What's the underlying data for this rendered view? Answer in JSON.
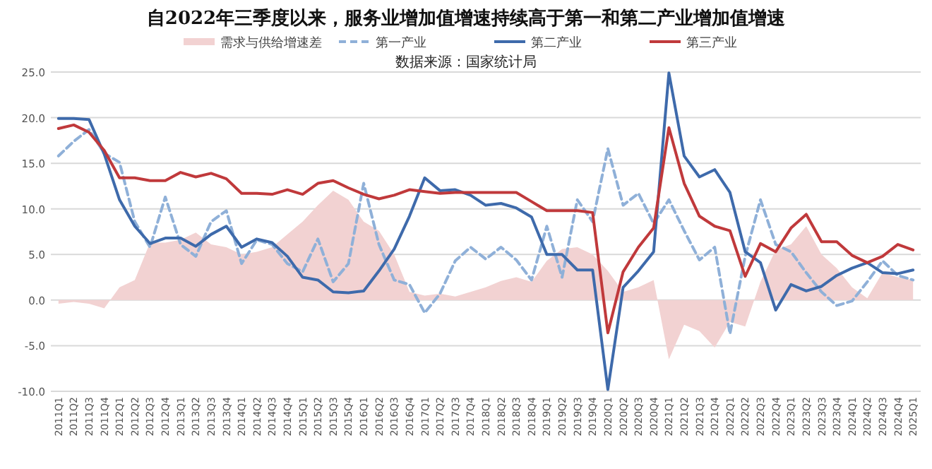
{
  "chart_data": {
    "type": "line",
    "title": "自2022年三季度以来，服务业增加值增速持续高于第一和第二产业增加值增速",
    "subtitle": "数据来源：国家统计局",
    "categories": [
      "2011Q1",
      "2011Q2",
      "2011Q3",
      "2011Q4",
      "2012Q1",
      "2012Q2",
      "2012Q3",
      "2012Q4",
      "2013Q1",
      "2013Q2",
      "2013Q3",
      "2013Q4",
      "2014Q1",
      "2014Q2",
      "2014Q3",
      "2014Q4",
      "2015Q1",
      "2015Q2",
      "2015Q3",
      "2015Q4",
      "2016Q1",
      "2016Q2",
      "2016Q3",
      "2016Q4",
      "2017Q1",
      "2017Q2",
      "2017Q3",
      "2017Q4",
      "2018Q1",
      "2018Q2",
      "2018Q3",
      "2018Q4",
      "2019Q1",
      "2019Q2",
      "2019Q3",
      "2019Q4",
      "2020Q1",
      "2020Q2",
      "2020Q3",
      "2020Q4",
      "2021Q1",
      "2021Q2",
      "2021Q3",
      "2021Q4",
      "2022Q1",
      "2022Q2",
      "2022Q3",
      "2022Q4",
      "2023Q1",
      "2023Q2",
      "2023Q3",
      "2023Q4",
      "2024Q1",
      "2024Q2",
      "2024Q3",
      "2024Q4",
      "2025Q1"
    ],
    "series": [
      {
        "name": "需求与供给增速差",
        "type": "area",
        "color": "#f2d2d2",
        "values": [
          -0.4,
          -0.2,
          -0.4,
          -0.9,
          1.4,
          2.2,
          6.3,
          6.3,
          6.6,
          7.4,
          6.1,
          5.8,
          5.0,
          5.3,
          5.8,
          7.2,
          8.6,
          10.4,
          12.0,
          11.0,
          8.6,
          7.6,
          5.0,
          0.9,
          0.5,
          0.7,
          0.4,
          0.9,
          1.4,
          2.1,
          2.5,
          2.0,
          4.3,
          5.6,
          5.8,
          5.0,
          3.2,
          0.9,
          1.4,
          2.2,
          -6.5,
          -2.7,
          -3.4,
          -5.2,
          -2.4,
          -2.9,
          2.0,
          5.5,
          6.1,
          8.1,
          5.0,
          3.5,
          1.4,
          0.2,
          3.0,
          2.5,
          2.2
        ]
      },
      {
        "name": "第一产业",
        "type": "line",
        "line_style": "dashed",
        "color": "#8fb0d8",
        "values": [
          15.8,
          17.4,
          18.7,
          16.1,
          15.1,
          8.6,
          5.8,
          11.3,
          6.1,
          4.8,
          8.6,
          9.8,
          4.0,
          6.6,
          6.1,
          4.0,
          3.1,
          6.7,
          2.0,
          4.0,
          12.8,
          6.1,
          2.2,
          1.7,
          -1.4,
          0.7,
          4.3,
          5.8,
          4.5,
          5.8,
          4.4,
          2.2,
          8.1,
          2.5,
          11.0,
          8.6,
          16.6,
          10.4,
          11.7,
          8.4,
          11.0,
          7.6,
          4.4,
          5.8,
          -3.7,
          4.8,
          11.0,
          6.1,
          5.3,
          3.0,
          0.9,
          -0.6,
          -0.1,
          2.0,
          4.3,
          2.7,
          2.2
        ]
      },
      {
        "name": "第二产业",
        "type": "line",
        "line_style": "solid",
        "color": "#3e6aab",
        "values": [
          19.9,
          19.9,
          19.8,
          16.0,
          11.0,
          8.1,
          6.2,
          6.8,
          6.8,
          5.9,
          7.2,
          8.1,
          5.8,
          6.7,
          6.3,
          4.8,
          2.5,
          2.2,
          0.9,
          0.8,
          1.0,
          3.2,
          5.6,
          9.2,
          13.4,
          12.0,
          12.1,
          11.5,
          10.4,
          10.6,
          10.1,
          9.1,
          5.0,
          5.0,
          3.3,
          3.3,
          -9.8,
          1.4,
          3.2,
          5.3,
          24.9,
          15.8,
          13.5,
          14.3,
          11.8,
          5.3,
          4.1,
          -1.1,
          1.7,
          1.0,
          1.5,
          2.7,
          3.5,
          4.1,
          3.0,
          2.9,
          3.3
        ]
      },
      {
        "name": "第三产业",
        "type": "line",
        "line_style": "solid",
        "color": "#c0393b",
        "values": [
          18.8,
          19.2,
          18.4,
          16.4,
          13.4,
          13.4,
          13.1,
          13.1,
          14.0,
          13.5,
          13.9,
          13.3,
          11.7,
          11.7,
          11.6,
          12.1,
          11.6,
          12.8,
          13.1,
          12.3,
          11.6,
          11.1,
          11.5,
          12.1,
          11.9,
          11.7,
          11.8,
          11.8,
          11.8,
          11.8,
          11.8,
          10.8,
          9.8,
          9.8,
          9.8,
          9.6,
          -3.6,
          3.1,
          5.8,
          7.9,
          18.9,
          12.8,
          9.2,
          8.1,
          7.6,
          2.6,
          6.2,
          5.3,
          7.9,
          9.4,
          6.4,
          6.4,
          4.9,
          4.1,
          4.8,
          6.1,
          5.5
        ]
      }
    ],
    "ylim": [
      -10,
      25
    ],
    "yticks": [
      {
        "value": -10,
        "label": "-10.0"
      },
      {
        "value": -5,
        "label": "-5.0"
      },
      {
        "value": 0,
        "label": "0.0"
      },
      {
        "value": 5,
        "label": "5.0"
      },
      {
        "value": 10,
        "label": "10.0"
      },
      {
        "value": 15,
        "label": "15.0"
      },
      {
        "value": 20,
        "label": "20.0"
      },
      {
        "value": 25,
        "label": "25.0"
      }
    ],
    "grid": "y",
    "legend": "top"
  }
}
